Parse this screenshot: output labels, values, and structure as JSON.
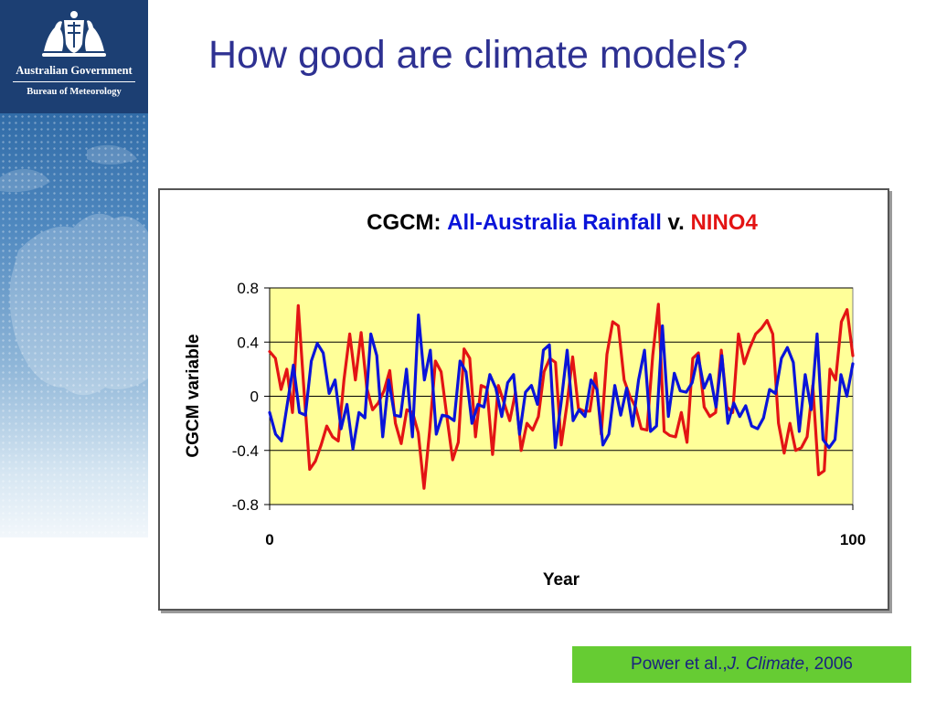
{
  "logo": {
    "line1": "Australian Government",
    "line2": "Bureau of Meteorology"
  },
  "slide": {
    "title": "How good are climate models?"
  },
  "citation": {
    "authors": "Power et al., ",
    "journal": "J. Climate",
    "year": ", 2006"
  },
  "colors": {
    "title": "#2e3192",
    "plot_background": "#ffff99",
    "rainfall_series": "#0a14d9",
    "nino4_series": "#e31414",
    "citation_background": "#66cc33"
  },
  "chart_data": {
    "type": "line",
    "title_parts": [
      {
        "text": "CGCM: ",
        "color": "#000000"
      },
      {
        "text": "All-Australia Rainfall",
        "color": "#0a14d9"
      },
      {
        "text": " v. ",
        "color": "#000000"
      },
      {
        "text": "NINO4",
        "color": "#e31414"
      }
    ],
    "xlabel": "Year",
    "ylabel": "CGCM variable",
    "xlim": [
      0,
      100
    ],
    "ylim": [
      -0.8,
      0.8
    ],
    "xticks": [
      0,
      100
    ],
    "xtick_labels": [
      "0",
      "100"
    ],
    "yticks": [
      -0.8,
      -0.4,
      0,
      0.4,
      0.8
    ],
    "ytick_labels": [
      "-0.8",
      "-0.4",
      "0",
      "0.4",
      "0.8"
    ],
    "grid": "horizontal",
    "legend": "none",
    "series": [
      {
        "color": "#e31414",
        "values": [
          0.33,
          0.28,
          0.05,
          0.2,
          -0.12,
          0.67,
          0.05,
          -0.54,
          -0.48,
          -0.36,
          -0.22,
          -0.3,
          -0.33,
          0.12,
          0.46,
          0.12,
          0.47,
          0.06,
          -0.1,
          -0.05,
          0.04,
          0.19,
          -0.2,
          -0.35,
          -0.1,
          -0.12,
          -0.27,
          -0.68,
          -0.25,
          0.26,
          0.18,
          -0.15,
          -0.47,
          -0.34,
          0.35,
          0.28,
          -0.3,
          0.08,
          0.06,
          -0.43,
          0.08,
          -0.05,
          -0.18,
          0.03,
          -0.4,
          -0.2,
          -0.25,
          -0.15,
          0.18,
          0.28,
          0.25,
          -0.36,
          -0.06,
          0.29,
          -0.09,
          -0.11,
          -0.11,
          0.17,
          -0.28,
          0.31,
          0.55,
          0.52,
          0.12,
          0.0,
          -0.08,
          -0.24,
          -0.25,
          0.3,
          0.68,
          -0.26,
          -0.29,
          -0.3,
          -0.12,
          -0.34,
          0.28,
          0.32,
          -0.08,
          -0.15,
          -0.12,
          0.34,
          -0.08,
          -0.12,
          0.46,
          0.24,
          0.36,
          0.46,
          0.5,
          0.56,
          0.46,
          -0.2,
          -0.42,
          -0.2,
          -0.4,
          -0.38,
          -0.3,
          0.08,
          -0.58,
          -0.55,
          0.2,
          0.12,
          0.55,
          0.64,
          0.3
        ]
      },
      {
        "color": "#0a14d9",
        "values": [
          -0.12,
          -0.28,
          -0.33,
          -0.05,
          0.23,
          -0.12,
          -0.14,
          0.26,
          0.39,
          0.32,
          0.02,
          0.12,
          -0.24,
          -0.06,
          -0.39,
          -0.12,
          -0.16,
          0.46,
          0.3,
          -0.3,
          0.12,
          -0.14,
          -0.15,
          0.2,
          -0.3,
          0.6,
          0.12,
          0.34,
          -0.28,
          -0.14,
          -0.15,
          -0.18,
          0.26,
          0.18,
          -0.2,
          -0.06,
          -0.08,
          0.16,
          0.06,
          -0.15,
          0.1,
          0.16,
          -0.28,
          0.03,
          0.08,
          -0.06,
          0.34,
          0.38,
          -0.38,
          -0.04,
          0.34,
          -0.18,
          -0.1,
          -0.15,
          0.12,
          0.05,
          -0.36,
          -0.28,
          0.08,
          -0.14,
          0.06,
          -0.22,
          0.12,
          0.34,
          -0.26,
          -0.22,
          0.52,
          -0.15,
          0.17,
          0.04,
          0.03,
          0.1,
          0.3,
          0.06,
          0.16,
          -0.08,
          0.3,
          -0.2,
          -0.05,
          -0.15,
          -0.07,
          -0.22,
          -0.24,
          -0.16,
          0.05,
          0.02,
          0.28,
          0.36,
          0.25,
          -0.26,
          0.16,
          -0.1,
          0.46,
          -0.32,
          -0.38,
          -0.32,
          0.16,
          0.0,
          0.24
        ]
      }
    ]
  }
}
